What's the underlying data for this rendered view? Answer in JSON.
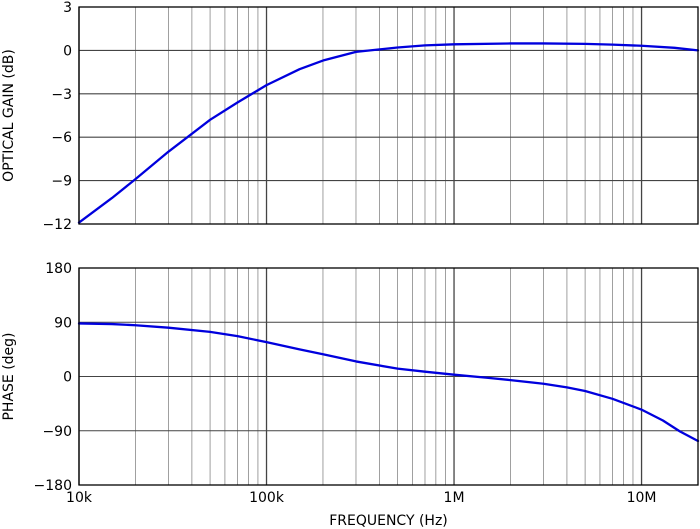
{
  "chart_data": [
    {
      "type": "line",
      "ylabel": "OPTICAL GAIN (dB)",
      "xscale": "log",
      "xlim": [
        10000,
        20000000
      ],
      "ylim": [
        -12,
        3
      ],
      "yticks": [
        3,
        0,
        -3,
        -6,
        -9,
        -12
      ],
      "ytick_labels": [
        "3",
        "0",
        "−3",
        "−6",
        "−9",
        "−12"
      ],
      "grid": true,
      "series": [
        {
          "color": "#0000dd",
          "x": [
            10000,
            15000,
            20000,
            30000,
            50000,
            70000,
            100000,
            150000,
            200000,
            300000,
            500000,
            700000,
            1000000,
            2000000,
            3000000,
            5000000,
            7000000,
            10000000,
            15000000,
            20000000
          ],
          "y": [
            -11.9,
            -10.2,
            -8.9,
            -7.0,
            -4.8,
            -3.6,
            -2.4,
            -1.3,
            -0.7,
            -0.1,
            0.2,
            0.35,
            0.42,
            0.48,
            0.48,
            0.45,
            0.4,
            0.32,
            0.18,
            0.0
          ]
        }
      ]
    },
    {
      "type": "line",
      "xlabel": "FREQUENCY (Hz)",
      "ylabel": "PHASE (deg)",
      "xscale": "log",
      "xlim": [
        10000,
        20000000
      ],
      "ylim": [
        -180,
        180
      ],
      "xticks": [
        10000,
        100000,
        1000000,
        10000000
      ],
      "xtick_labels": [
        "10k",
        "100k",
        "1M",
        "10M"
      ],
      "yticks": [
        180,
        90,
        0,
        -90,
        -180
      ],
      "ytick_labels": [
        "180",
        "90",
        "0",
        "−90",
        "−180"
      ],
      "grid": true,
      "series": [
        {
          "color": "#0000dd",
          "x": [
            10000,
            15000,
            20000,
            30000,
            50000,
            70000,
            100000,
            150000,
            200000,
            300000,
            500000,
            700000,
            1000000,
            1500000,
            2000000,
            3000000,
            4000000,
            5000000,
            7000000,
            10000000,
            13000000,
            16000000,
            20000000
          ],
          "y": [
            88,
            87,
            85,
            81,
            74,
            67,
            57,
            45,
            37,
            25,
            13,
            8,
            3,
            -2,
            -6,
            -12,
            -18,
            -24,
            -37,
            -55,
            -73,
            -91,
            -107
          ]
        }
      ]
    }
  ]
}
